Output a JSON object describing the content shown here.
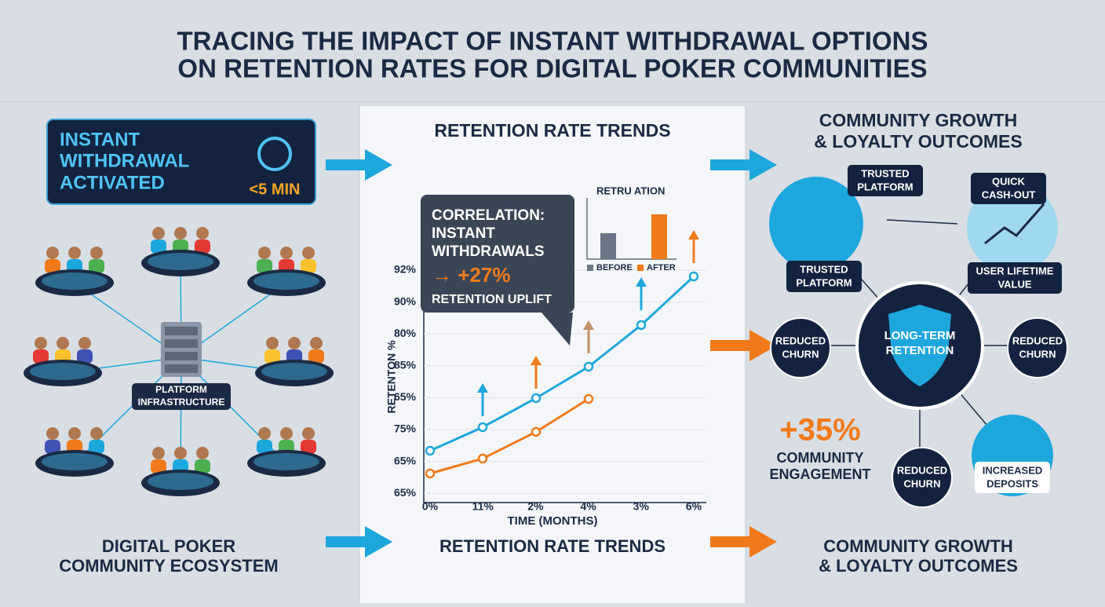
{
  "header": {
    "title": [
      "TRACING THE IMPACT OF INSTANT WITHDRAWAL OPTIONS",
      "ON RETENTION RATES FOR DIGITAL POKER COMMUNITIES"
    ]
  },
  "left": {
    "badge": [
      "INSTANT",
      "WITHDRAWAL",
      "ACTIVATED"
    ],
    "badge_time": "<5 MIN",
    "hub": [
      "PLATFORM",
      "INFRASTRUCTURE"
    ],
    "footer": [
      "DIGITAL POKER",
      "COMMUNITY ECOSYSTEM"
    ]
  },
  "middle": {
    "heading": "RETENTION RATE TRENDS",
    "callout": [
      "CORRELATION:",
      "INSTANT",
      "WITHDRAWALS",
      "→ +27%",
      "RETENTION UPLIFT"
    ],
    "mini_chart": {
      "title": "RETRU ATION",
      "legend": [
        "BEFORE",
        "AFTER"
      ]
    },
    "y_axis_title": "RETENTON %",
    "y_labels": [
      "92%",
      "90%",
      "80%",
      "85%",
      "65%",
      "75%",
      "65%",
      "65%"
    ],
    "x_labels": [
      "0%",
      "11%",
      "2%",
      "4%",
      "3%",
      "6%"
    ],
    "x_axis_title": "TIME (MONTHS)",
    "footer": "RETENTION RATE TRENDS"
  },
  "right": {
    "heading": [
      "COMMUNITY GROWTH",
      "& LOYALTY OUTCOMES"
    ],
    "nodes": {
      "trusted_top": [
        "TRUSTED",
        "PLATFORM"
      ],
      "quick_cash": [
        "QUICK",
        "CASH-OUT"
      ],
      "trusted_left": [
        "TRUSTED",
        "PLATFORM"
      ],
      "lifetime": [
        "USER LIFETIME",
        "VALUE"
      ],
      "churn_left": [
        "REDUCED",
        "CHURN"
      ],
      "center": [
        "LONG-TERM",
        "RETENTION"
      ],
      "churn_right": [
        "REDUCED",
        "CHURN"
      ],
      "churn_bottom": [
        "REDUCED",
        "CHURN"
      ],
      "deposits": [
        "INCREASED",
        "DEPOSITS"
      ]
    },
    "engagement": [
      "+35%",
      "COMMUNITY",
      "ENGAGEMENT"
    ],
    "footer": [
      "COMMUNITY GROWTH",
      "& LOYALTY OUTCOMES"
    ]
  }
}
